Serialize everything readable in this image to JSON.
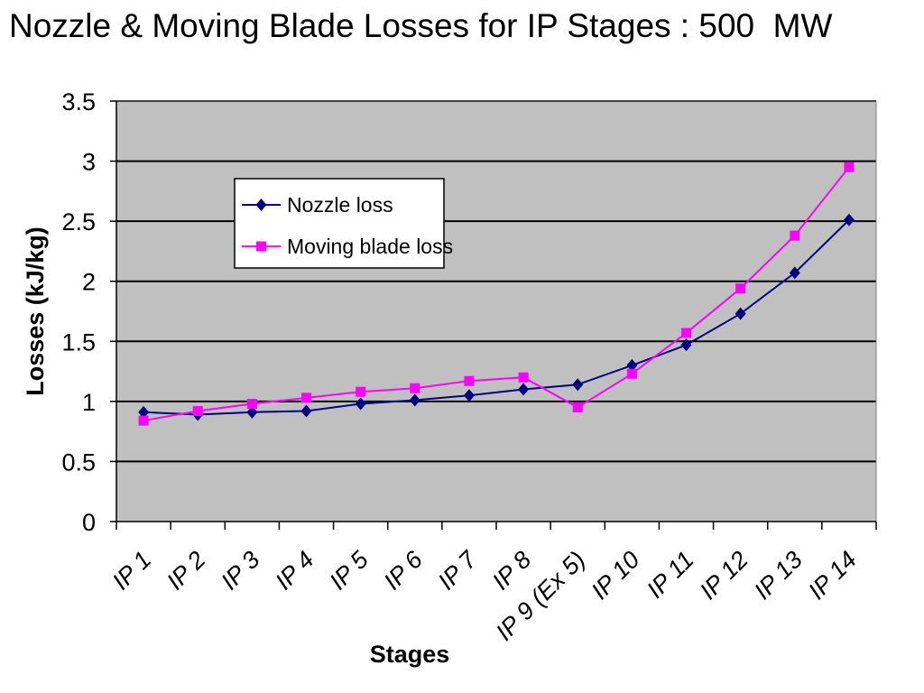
{
  "page": {
    "title": "Nozzle & Moving Blade Losses for IP Stages : 500  MW"
  },
  "chart_data": {
    "type": "line",
    "title": "Nozzle & Moving Blade Losses for IP Stages : 500  MW",
    "xlabel": "Stages",
    "ylabel": "Losses (kJ/kg)",
    "categories": [
      "IP 1",
      "IP 2",
      "IP 3",
      "IP 4",
      "IP 5",
      "IP 6",
      "IP 7",
      "IP 8",
      "IP 9 (Ex 5)",
      "IP 10",
      "IP 11",
      "IP 12",
      "IP 13",
      "IP 14"
    ],
    "ylim": [
      0,
      3.5
    ],
    "yticks": [
      "0",
      "0.5",
      "1",
      "1.5",
      "2",
      "2.5",
      "3",
      "3.5"
    ],
    "ytick_values": [
      0,
      0.5,
      1,
      1.5,
      2,
      2.5,
      3,
      3.5
    ],
    "grid": true,
    "legend_position": "upper-left-inside",
    "plot_background": "#c0c0c0",
    "series": [
      {
        "name": "Nozzle loss",
        "color": "#000080",
        "marker": "diamond",
        "values": [
          0.91,
          0.89,
          0.91,
          0.92,
          0.98,
          1.01,
          1.05,
          1.1,
          1.14,
          1.3,
          1.47,
          1.73,
          2.07,
          2.51
        ]
      },
      {
        "name": "Moving blade loss",
        "color": "#ff00ff",
        "marker": "square",
        "values": [
          0.84,
          0.92,
          0.98,
          1.03,
          1.08,
          1.11,
          1.17,
          1.2,
          0.95,
          1.23,
          1.57,
          1.94,
          2.38,
          2.95
        ]
      }
    ]
  }
}
